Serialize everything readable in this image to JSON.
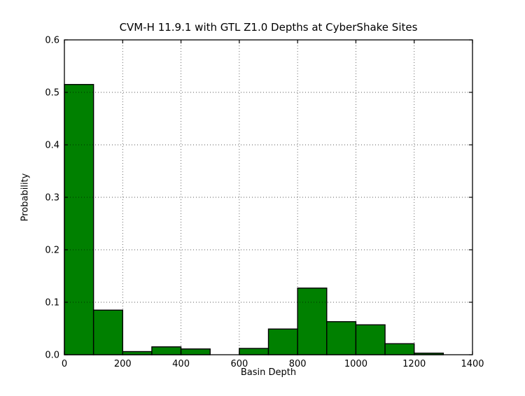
{
  "figure": {
    "background": "#ffffff"
  },
  "chart_data": {
    "type": "bar",
    "subtype": "histogram",
    "title": "CVM-H 11.9.1 with GTL Z1.0 Depths at CyberShake Sites",
    "xlabel": "Basin Depth",
    "ylabel": "Probability",
    "xlim": [
      0,
      1400
    ],
    "ylim": [
      0,
      0.6
    ],
    "xticks": [
      0,
      200,
      400,
      600,
      800,
      1000,
      1200,
      1400
    ],
    "xticklabels": [
      "0",
      "200",
      "400",
      "600",
      "800",
      "1000",
      "1200",
      "1400"
    ],
    "yticks": [
      0,
      0.1,
      0.2,
      0.3,
      0.4,
      0.5,
      0.6
    ],
    "yticklabels": [
      "0.0",
      "0.1",
      "0.2",
      "0.3",
      "0.4",
      "0.5",
      "0.6"
    ],
    "bin_width": 100,
    "bin_starts": [
      0,
      100,
      200,
      300,
      400,
      500,
      600,
      700,
      800,
      900,
      1000,
      1100,
      1200,
      1300
    ],
    "values": [
      0.515,
      0.085,
      0.006,
      0.015,
      0.011,
      0,
      0.012,
      0.049,
      0.127,
      0.063,
      0.057,
      0.021,
      0.003,
      0
    ],
    "bar_color": "#008000",
    "bar_edge_color": "#000000",
    "grid": true,
    "grid_style": "dotted",
    "legend_position": "none"
  }
}
